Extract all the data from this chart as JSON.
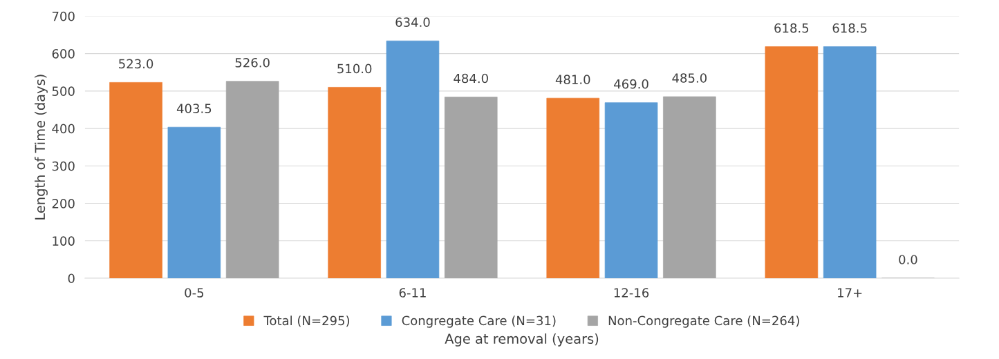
{
  "chart_data": {
    "type": "bar",
    "categories": [
      "0-5",
      "6-11",
      "12-16",
      "17+"
    ],
    "xlabel": "Age at removal (years)",
    "ylabel": "Length of Time (days)",
    "series": [
      {
        "name": "Total (N=295)",
        "color": "#ed7d31",
        "values": [
          523.0,
          510.0,
          481.0,
          618.5
        ],
        "value_labels": [
          "523.0",
          "510.0",
          "481.0",
          "618.5"
        ]
      },
      {
        "name": "Congregate Care (N=31)",
        "color": "#5b9bd5",
        "values": [
          403.5,
          634.0,
          469.0,
          618.5
        ],
        "value_labels": [
          "403.5",
          "634.0",
          "469.0",
          "618.5"
        ]
      },
      {
        "name": "Non-Congregate Care (N=264)",
        "color": "#a5a5a5",
        "values": [
          526.0,
          484.0,
          485.0,
          0.0
        ],
        "value_labels": [
          "526.0",
          "484.0",
          "485.0",
          "0.0"
        ]
      }
    ],
    "ylim": [
      0,
      700
    ],
    "yticks": [
      0,
      100,
      200,
      300,
      400,
      500,
      600,
      700
    ],
    "grid": "y",
    "legend": "bottom"
  }
}
